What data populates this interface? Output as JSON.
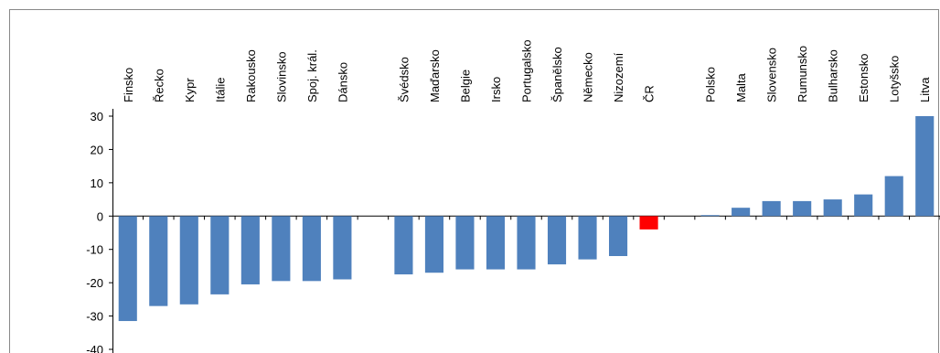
{
  "chart_data": {
    "type": "bar",
    "categories": [
      "Finsko",
      "Řecko",
      "Kypr",
      "Itálie",
      "Rakousko",
      "Slovinsko",
      "Spoj. král.",
      "Dánsko",
      null,
      "Švédsko",
      "Maďarsko",
      "Belgie",
      "Irsko",
      "Portugalsko",
      "Španělsko",
      "Německo",
      "Nizozemí",
      "ČR",
      null,
      "Polsko",
      "Malta",
      "Slovensko",
      "Rumunsko",
      "Bulharsko",
      "Estonsko",
      "Lotyšsko",
      "Litva"
    ],
    "values": [
      -31.5,
      -27,
      -26.5,
      -23.5,
      -20.5,
      -19.5,
      -19.5,
      -19,
      null,
      -17.5,
      -17,
      -16,
      -16,
      -16,
      -14.5,
      -13,
      -12,
      -4,
      null,
      0.3,
      2.5,
      4.5,
      4.5,
      5,
      6.5,
      12,
      30
    ],
    "colors": [
      "#4f81bd",
      "#4f81bd",
      "#4f81bd",
      "#4f81bd",
      "#4f81bd",
      "#4f81bd",
      "#4f81bd",
      "#4f81bd",
      null,
      "#4f81bd",
      "#4f81bd",
      "#4f81bd",
      "#4f81bd",
      "#4f81bd",
      "#4f81bd",
      "#4f81bd",
      "#4f81bd",
      "#ff0000",
      null,
      "#4f81bd",
      "#4f81bd",
      "#4f81bd",
      "#4f81bd",
      "#4f81bd",
      "#4f81bd",
      "#4f81bd",
      "#4f81bd"
    ],
    "ylim": [
      -40,
      30
    ],
    "yticks": [
      -40,
      -30,
      -20,
      -10,
      0,
      10,
      20,
      30
    ],
    "grid": false
  }
}
